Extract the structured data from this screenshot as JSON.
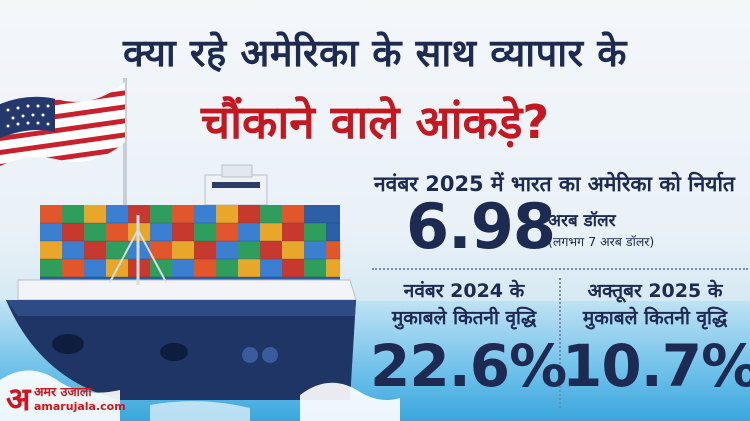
{
  "headline": {
    "line1": "क्या रहे अमेरिका के साथ व्यापार के",
    "line2": "चौंकाने वाले आंकड़े?"
  },
  "export_stat": {
    "label": "नवंबर 2025 में भारत का अमेरिका को निर्यात",
    "value": "6.98",
    "unit": "अरब डॉलर",
    "approx": "(लगभग 7 अरब डॉलर)"
  },
  "growth_left": {
    "label_line1": "नवंबर 2024 के",
    "label_line2": "मुकाबले कितनी वृद्धि",
    "value": "22.6%"
  },
  "growth_right": {
    "label_line1": "अक्तूबर 2025 के",
    "label_line2": "मुकाबले कितनी वृद्धि",
    "value": "10.7%"
  },
  "logo": {
    "mark": "अ",
    "name": "अमर उजाला",
    "url": "amarujala.com"
  },
  "colors": {
    "navy": "#1d2a52",
    "red": "#c4171f",
    "brand_red": "#d3141d",
    "ship_hull": "#1f3566"
  },
  "icons": [
    "us-flag-icon",
    "cargo-ship-icon"
  ]
}
